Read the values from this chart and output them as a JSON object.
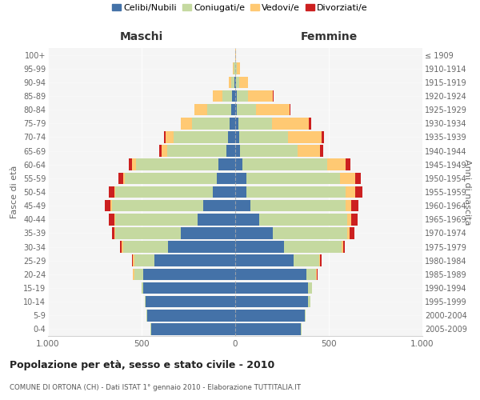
{
  "age_groups": [
    "0-4",
    "5-9",
    "10-14",
    "15-19",
    "20-24",
    "25-29",
    "30-34",
    "35-39",
    "40-44",
    "45-49",
    "50-54",
    "55-59",
    "60-64",
    "65-69",
    "70-74",
    "75-79",
    "80-84",
    "85-89",
    "90-94",
    "95-99",
    "100+"
  ],
  "birth_years": [
    "2005-2009",
    "2000-2004",
    "1995-1999",
    "1990-1994",
    "1985-1989",
    "1980-1984",
    "1975-1979",
    "1970-1974",
    "1965-1969",
    "1960-1964",
    "1955-1959",
    "1950-1954",
    "1945-1949",
    "1940-1944",
    "1935-1939",
    "1930-1934",
    "1925-1929",
    "1920-1924",
    "1915-1919",
    "1910-1914",
    "≤ 1909"
  ],
  "male_celibi": [
    450,
    470,
    480,
    490,
    490,
    430,
    360,
    290,
    200,
    170,
    120,
    100,
    90,
    45,
    40,
    30,
    20,
    15,
    5,
    2,
    0
  ],
  "male_coniugati": [
    5,
    5,
    5,
    10,
    50,
    110,
    240,
    350,
    440,
    490,
    520,
    490,
    440,
    320,
    290,
    200,
    130,
    55,
    15,
    5,
    0
  ],
  "male_vedovi": [
    0,
    0,
    0,
    0,
    5,
    5,
    5,
    5,
    5,
    5,
    5,
    10,
    20,
    30,
    40,
    60,
    70,
    50,
    15,
    5,
    0
  ],
  "male_divorziati": [
    0,
    0,
    0,
    0,
    0,
    5,
    10,
    15,
    30,
    30,
    30,
    25,
    20,
    10,
    10,
    0,
    0,
    0,
    0,
    0,
    0
  ],
  "female_celibi": [
    350,
    370,
    390,
    390,
    380,
    310,
    260,
    200,
    130,
    80,
    60,
    60,
    40,
    25,
    20,
    15,
    10,
    10,
    5,
    2,
    0
  ],
  "female_coniugati": [
    5,
    5,
    10,
    20,
    50,
    140,
    310,
    400,
    470,
    510,
    530,
    500,
    450,
    310,
    260,
    180,
    100,
    60,
    15,
    5,
    0
  ],
  "female_vedovi": [
    0,
    0,
    0,
    0,
    5,
    5,
    5,
    10,
    20,
    30,
    50,
    80,
    100,
    120,
    180,
    200,
    180,
    130,
    50,
    20,
    5
  ],
  "female_divorziati": [
    0,
    0,
    0,
    0,
    5,
    5,
    10,
    25,
    35,
    40,
    40,
    30,
    25,
    15,
    15,
    10,
    5,
    5,
    0,
    0,
    0
  ],
  "colors": {
    "celibi": "#4472a8",
    "coniugati": "#c5d9a0",
    "vedovi": "#ffc973",
    "divorziati": "#cc2020"
  },
  "title": "Popolazione per età, sesso e stato civile - 2010",
  "subtitle": "COMUNE DI ORTONA (CH) - Dati ISTAT 1° gennaio 2010 - Elaborazione TUTTITALIA.IT",
  "legend_labels": [
    "Celibi/Nubili",
    "Coniugati/e",
    "Vedovi/e",
    "Divorziati/e"
  ],
  "xlim": 1000,
  "background_color": "#f5f5f5"
}
